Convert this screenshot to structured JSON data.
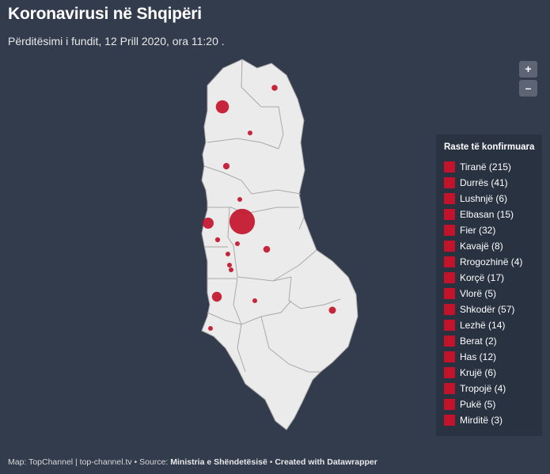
{
  "title": "Koronavirusi në Shqipëri",
  "subtitle": "Përditësimi i fundit, 12 Prill 2020, ora 11:20 .",
  "zoom": {
    "in_label": "+",
    "out_label": "–"
  },
  "colors": {
    "background": "#333c4d",
    "land": "#ebebeb",
    "marker": "#c3132b"
  },
  "legend": {
    "title": "Raste të konfirmuara",
    "items": [
      {
        "label": "Tiranë (215)"
      },
      {
        "label": "Durrës (41)"
      },
      {
        "label": "Lushnjë (6)"
      },
      {
        "label": "Elbasan (15)"
      },
      {
        "label": "Fier (32)"
      },
      {
        "label": "Kavajë (8)"
      },
      {
        "label": "Rrogozhinë (4)"
      },
      {
        "label": "Korçë (17)"
      },
      {
        "label": "Vlorë (5)"
      },
      {
        "label": "Shkodër (57)"
      },
      {
        "label": "Lezhë (14)"
      },
      {
        "label": "Berat (2)"
      },
      {
        "label": "Has (12)"
      },
      {
        "label": "Krujë (6)"
      },
      {
        "label": "Tropojë (4)"
      },
      {
        "label": "Pukë (5)"
      },
      {
        "label": "Mirditë (3)"
      }
    ]
  },
  "footer": {
    "prefix": "Map: TopChannel | top-channel.tv • Source: ",
    "source": "Ministria e Shëndetësisë",
    "sep": " • ",
    "credit": "Created with Datawrapper"
  }
}
